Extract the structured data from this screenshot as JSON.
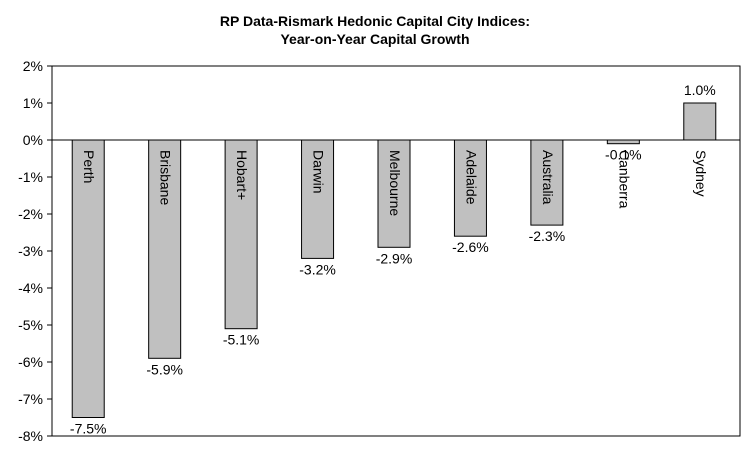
{
  "chart_data": {
    "type": "bar",
    "title": "RP Data-Rismark Hedonic Capital City Indices:",
    "subtitle": "Year-on-Year Capital Growth",
    "xlabel": "",
    "ylabel": "",
    "categories": [
      "Perth",
      "Brisbane",
      "Hobart+",
      "Darwin",
      "Melbourne",
      "Adelaide",
      "Australia",
      "Canberra",
      "Sydney"
    ],
    "values": [
      -7.5,
      -5.9,
      -5.1,
      -3.2,
      -2.9,
      -2.6,
      -2.3,
      -0.1,
      1.0
    ],
    "data_labels": [
      "-7.5%",
      "-5.9%",
      "-5.1%",
      "-3.2%",
      "-2.9%",
      "-2.6%",
      "-2.3%",
      "-0.1%",
      "1.0%"
    ],
    "ylim": [
      -8,
      2
    ],
    "yticks": [
      2,
      1,
      0,
      -1,
      -2,
      -3,
      -4,
      -5,
      -6,
      -7,
      -8
    ],
    "ytick_labels": [
      "2%",
      "1%",
      "0%",
      "-1%",
      "-2%",
      "-3%",
      "-4%",
      "-5%",
      "-6%",
      "-7%",
      "-8%"
    ],
    "grid": false,
    "legend": "none",
    "bar_color": "#c0c0c0",
    "bar_edge_color": "#000000",
    "category_label_placement": "inside bars, rotated vertically"
  }
}
